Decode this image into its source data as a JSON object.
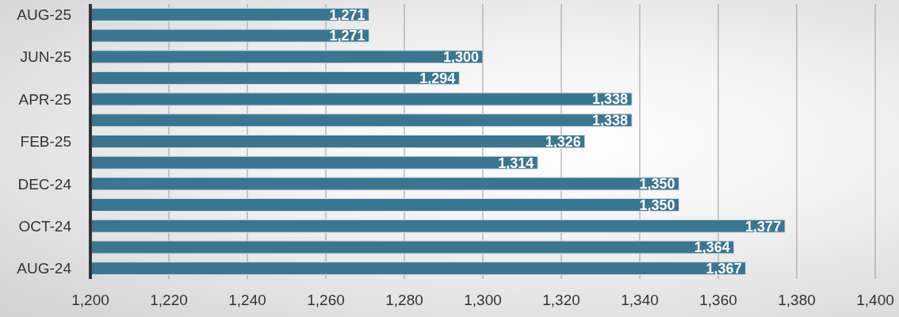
{
  "chart_data": {
    "type": "bar",
    "orientation": "horizontal",
    "categories": [
      "AUG-25",
      null,
      "JUN-25",
      null,
      "APR-25",
      null,
      "FEB-25",
      null,
      "DEC-24",
      null,
      "OCT-24",
      null,
      "AUG-24"
    ],
    "values": [
      1271,
      1271,
      1300,
      1294,
      1338,
      1338,
      1326,
      1314,
      1350,
      1350,
      1377,
      1364,
      1367
    ],
    "value_labels": [
      "1,271",
      "1,271",
      "1,300",
      "1,294",
      "1,338",
      "1,338",
      "1,326",
      "1,314",
      "1,350",
      "1,350",
      "1,377",
      "1,364",
      "1,367"
    ],
    "color": "#3a7692",
    "xlim": [
      1200,
      1400
    ],
    "xticks": [
      {
        "value": 1200,
        "label": "1,200"
      },
      {
        "value": 1220,
        "label": "1,220"
      },
      {
        "value": 1240,
        "label": "1,240"
      },
      {
        "value": 1260,
        "label": "1,260"
      },
      {
        "value": 1280,
        "label": "1,280"
      },
      {
        "value": 1300,
        "label": "1,300"
      },
      {
        "value": 1320,
        "label": "1,320"
      },
      {
        "value": 1340,
        "label": "1,340"
      },
      {
        "value": 1360,
        "label": "1,360"
      },
      {
        "value": 1380,
        "label": "1,380"
      },
      {
        "value": 1400,
        "label": "1,400"
      }
    ],
    "grid": "x"
  }
}
